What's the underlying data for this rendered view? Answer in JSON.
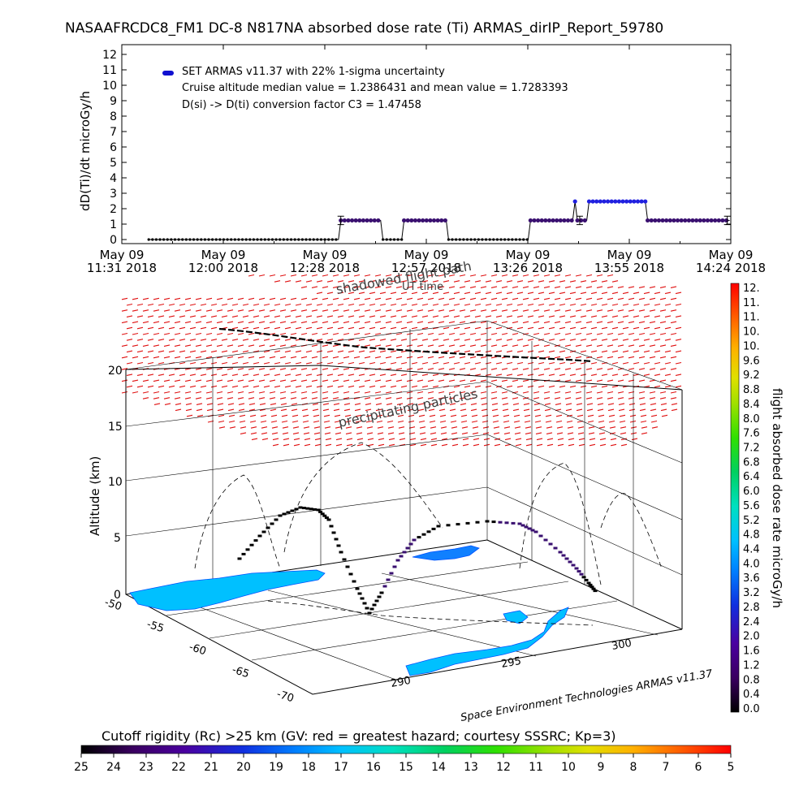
{
  "title": "NASAAFRCDC8_FM1 DC-8   N817NA absorbed dose rate (Ti) ARMAS_dirIP_Report_59780",
  "chart_data": [
    {
      "type": "line",
      "ylabel": "dD(Ti)/dt microGy/h",
      "ylim": [
        0,
        12
      ],
      "yticks": [
        0,
        1,
        2,
        3,
        4,
        5,
        6,
        7,
        8,
        9,
        10,
        11,
        12
      ],
      "xticks": [
        {
          "date": "May 09",
          "time": "11:31 2018"
        },
        {
          "date": "May 09",
          "time": "12:00 2018"
        },
        {
          "date": "May 09",
          "time": "12:28 2018"
        },
        {
          "date": "May 09",
          "time": "12:57 2018"
        },
        {
          "date": "May 09",
          "time": "13:26 2018"
        },
        {
          "date": "May 09",
          "time": "13:55 2018"
        },
        {
          "date": "May 09",
          "time": "14:24 2018"
        }
      ],
      "legend": "SET ARMAS v11.37 with 22% 1-sigma uncertainty",
      "notes": [
        "Cruise altitude median value = 1.2386431 and mean value = 1.7283393",
        "D(si) -> D(ti) conversion factor C3 = 1.47458"
      ],
      "series": [
        {
          "values_time_min": [
            11.5,
            92.5,
            93.5,
            110.5,
            111.5,
            119.5,
            120.5,
            138.5,
            139.5,
            172.5
          ]
        },
        {
          "segments": [
            {
              "t_start": 11.5,
              "t_end": 92.5,
              "value": 0
            },
            {
              "t_start": 93.5,
              "t_end": 110.5,
              "value": 1.24
            },
            {
              "t_start": 111.5,
              "t_end": 119.5,
              "value": 0
            },
            {
              "t_start": 120.5,
              "t_end": 138.5,
              "value": 1.24
            },
            {
              "t_start": 139.5,
              "t_end": 173.5,
              "value": 0
            },
            {
              "t_start": 174.5,
              "t_end": 192.5,
              "value": 1.24
            },
            {
              "t_start": 193.5,
              "t_end": 193.5,
              "value": 2.47
            },
            {
              "t_start": 194.5,
              "t_end": 198.5,
              "value": 1.24
            },
            {
              "t_start": 199.5,
              "t_end": 223.5,
              "value": 2.47
            },
            {
              "t_start": 224.5,
              "t_end": 259.5,
              "value": 1.24
            }
          ],
          "error_bars": [
            {
              "t": 93.5,
              "value": 1.24
            },
            {
              "t": 195.5,
              "value": 1.24
            },
            {
              "t": 258.5,
              "value": 1.24
            }
          ]
        }
      ]
    },
    {
      "type": "3d-trajectory",
      "zlabel": "Altitude (km)",
      "zticks": [
        0,
        5,
        10,
        15,
        20
      ],
      "lat_ticks": [
        "-50",
        "-55",
        "-60",
        "-65",
        "-70"
      ],
      "lon_ticks": [
        "290",
        "295",
        "300"
      ],
      "annotations": [
        "shadowed flight path",
        "UT time",
        "precipitating particles",
        "Space Environment Technologies ARMAS v11.37"
      ]
    }
  ],
  "dose_colorbar": {
    "label": "flight absorbed dose rate microGy/h",
    "ticks": [
      "12.",
      "11.",
      "11.",
      "10.",
      "10.",
      "9.6",
      "9.2",
      "8.8",
      "8.4",
      "8.0",
      "7.6",
      "7.2",
      "6.8",
      "6.4",
      "6.0",
      "5.6",
      "5.2",
      "4.8",
      "4.4",
      "4.0",
      "3.6",
      "3.2",
      "2.8",
      "2.4",
      "2.0",
      "1.6",
      "1.2",
      "0.8",
      "0.4",
      "0.0"
    ]
  },
  "rigidity_colorbar": {
    "label": "Cutoff rigidity (Rc) >25 km (GV: red = greatest hazard; courtesy SSSRC; Kp=3)",
    "ticks": [
      "25",
      "24",
      "23",
      "22",
      "21",
      "20",
      "19",
      "18",
      "17",
      "16",
      "15",
      "14",
      "13",
      "12",
      "11",
      "10",
      "9",
      "8",
      "7",
      "6",
      "5"
    ]
  }
}
